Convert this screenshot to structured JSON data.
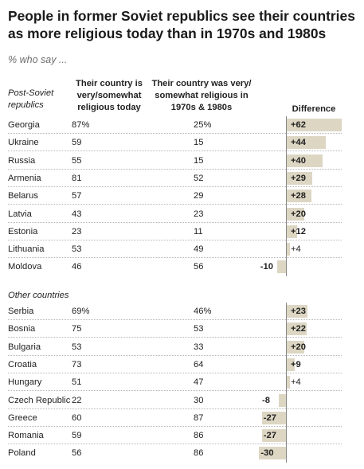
{
  "title": "People in former Soviet republics see their countries as more religious today than in 1970s and 1980s",
  "subtitle": "% who say ...",
  "columns": {
    "group1": "Post-Soviet republics",
    "today": "Their country is very/somewhat religious today",
    "past": "Their country was very/ somewhat religious in 1970s & 1980s",
    "difference": "Difference"
  },
  "colors": {
    "bar": "#dcd6c3",
    "axis": "#888888",
    "rule": "#b5b5b5"
  },
  "chart_data": {
    "type": "table",
    "title": "People in former Soviet republics see their countries as more religious today than in 1970s and 1980s",
    "value_unit": "%",
    "groups": [
      {
        "name": "Post-Soviet republics",
        "rows": [
          {
            "country": "Georgia",
            "today": "87%",
            "past": "25%",
            "diff": 62,
            "label": "+62"
          },
          {
            "country": "Ukraine",
            "today": "59",
            "past": "15",
            "diff": 44,
            "label": "+44"
          },
          {
            "country": "Russia",
            "today": "55",
            "past": "15",
            "diff": 40,
            "label": "+40"
          },
          {
            "country": "Armenia",
            "today": "81",
            "past": "52",
            "diff": 29,
            "label": "+29"
          },
          {
            "country": "Belarus",
            "today": "57",
            "past": "29",
            "diff": 28,
            "label": "+28"
          },
          {
            "country": "Latvia",
            "today": "43",
            "past": "23",
            "diff": 20,
            "label": "+20"
          },
          {
            "country": "Estonia",
            "today": "23",
            "past": "11",
            "diff": 12,
            "label": "+12"
          },
          {
            "country": "Lithuania",
            "today": "53",
            "past": "49",
            "diff": 4,
            "label": "+4"
          },
          {
            "country": "Moldova",
            "today": "46",
            "past": "56",
            "diff": -10,
            "label": "-10"
          }
        ]
      },
      {
        "name": "Other countries",
        "rows": [
          {
            "country": "Serbia",
            "today": "69%",
            "past": "46%",
            "diff": 23,
            "label": "+23"
          },
          {
            "country": "Bosnia",
            "today": "75",
            "past": "53",
            "diff": 22,
            "label": "+22"
          },
          {
            "country": "Bulgaria",
            "today": "53",
            "past": "33",
            "diff": 20,
            "label": "+20"
          },
          {
            "country": "Croatia",
            "today": "73",
            "past": "64",
            "diff": 9,
            "label": "+9"
          },
          {
            "country": "Hungary",
            "today": "51",
            "past": "47",
            "diff": 4,
            "label": "+4"
          },
          {
            "country": "Czech Republic",
            "today": "22",
            "past": "30",
            "diff": -8,
            "label": "-8"
          },
          {
            "country": "Greece",
            "today": "60",
            "past": "87",
            "diff": -27,
            "label": "-27"
          },
          {
            "country": "Romania",
            "today": "59",
            "past": "86",
            "diff": -27,
            "label": "-27"
          },
          {
            "country": "Poland",
            "today": "56",
            "past": "86",
            "diff": -30,
            "label": "-30"
          }
        ]
      }
    ]
  }
}
